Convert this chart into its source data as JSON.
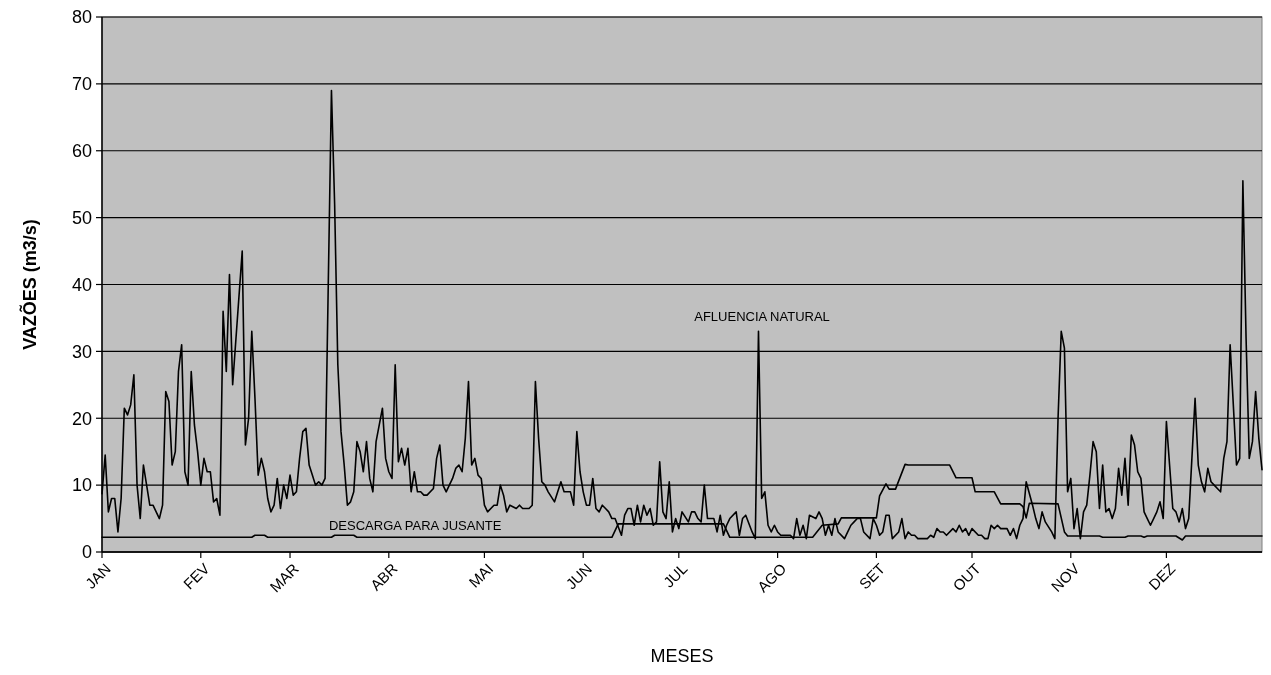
{
  "chart_data": {
    "type": "line",
    "xlabel": "MESES",
    "ylabel": "VAZÕES (m3/s)",
    "xlim": [
      "--01-01",
      "--12-31"
    ],
    "xticks": [
      {
        "value": "--01-01",
        "label": "JAN"
      },
      {
        "value": "--02-01",
        "label": "FEV"
      },
      {
        "value": "--03-01",
        "label": "MAR"
      },
      {
        "value": "--04-01",
        "label": "ABR"
      },
      {
        "value": "--05-01",
        "label": "MAI"
      },
      {
        "value": "--06-01",
        "label": "JUN"
      },
      {
        "value": "--07-01",
        "label": "JUL"
      },
      {
        "value": "--08-01",
        "label": "AGO"
      },
      {
        "value": "--09-01",
        "label": "SET"
      },
      {
        "value": "--10-01",
        "label": "OUT"
      },
      {
        "value": "--11-01",
        "label": "NOV"
      },
      {
        "value": "--12-01",
        "label": "DEZ"
      }
    ],
    "ylim": [
      0,
      80
    ],
    "yticks": [
      0,
      10,
      20,
      30,
      40,
      50,
      60,
      70,
      80
    ],
    "grid": "y",
    "line_style": "solid",
    "marker": "none",
    "series": [
      {
        "name": "AFLUENCIA NATURAL",
        "color": "#000000",
        "x": [
          "--01-01",
          "--01-02",
          "--01-03",
          "--01-04",
          "--01-05",
          "--01-06",
          "--01-07",
          "--01-08",
          "--01-09",
          "--01-10",
          "--01-11",
          "--01-12",
          "--01-13",
          "--01-14",
          "--01-15",
          "--01-16",
          "--01-17",
          "--01-18",
          "--01-19",
          "--01-20",
          "--01-21",
          "--01-22",
          "--01-23",
          "--01-24",
          "--01-25",
          "--01-26",
          "--01-27",
          "--01-28",
          "--01-29",
          "--01-30",
          "--01-31",
          "--02-01",
          "--02-02",
          "--02-03",
          "--02-04",
          "--02-05",
          "--02-06",
          "--02-07",
          "--02-08",
          "--02-09",
          "--02-10",
          "--02-11",
          "--02-14",
          "--02-15",
          "--02-16",
          "--02-17",
          "--02-18",
          "--02-19",
          "--02-20",
          "--02-21",
          "--02-22",
          "--02-23",
          "--02-24",
          "--02-25",
          "--02-26",
          "--02-27",
          "--02-28",
          "--03-01",
          "--03-02",
          "--03-03",
          "--03-04",
          "--03-05",
          "--03-06",
          "--03-07",
          "--03-08",
          "--03-09",
          "--03-10",
          "--03-11",
          "--03-12",
          "--03-13",
          "--03-14",
          "--03-15",
          "--03-16",
          "--03-17",
          "--03-18",
          "--03-19",
          "--03-20",
          "--03-21",
          "--03-22",
          "--03-23",
          "--03-24",
          "--03-25",
          "--03-26",
          "--03-27",
          "--03-28",
          "--03-29",
          "--03-30",
          "--03-31",
          "--04-01",
          "--04-02",
          "--04-03",
          "--04-04",
          "--04-05",
          "--04-06",
          "--04-07",
          "--04-08",
          "--04-09",
          "--04-10",
          "--04-11",
          "--04-12",
          "--04-13",
          "--04-15",
          "--04-16",
          "--04-17",
          "--04-18",
          "--04-19",
          "--04-21",
          "--04-22",
          "--04-23",
          "--04-24",
          "--04-25",
          "--04-26",
          "--04-27",
          "--04-28",
          "--04-29",
          "--04-30",
          "--05-01",
          "--05-02",
          "--05-04",
          "--05-05",
          "--05-06",
          "--05-07",
          "--05-08",
          "--05-09",
          "--05-11",
          "--05-12",
          "--05-13",
          "--05-15",
          "--05-16",
          "--05-17",
          "--05-18",
          "--05-19",
          "--05-20",
          "--05-21",
          "--05-23",
          "--05-24",
          "--05-25",
          "--05-26",
          "--05-28",
          "--05-29",
          "--05-30",
          "--05-31",
          "--06-01",
          "--06-02",
          "--06-03",
          "--06-04",
          "--06-05",
          "--06-06",
          "--06-07",
          "--06-08",
          "--06-09",
          "--06-10",
          "--06-11",
          "--06-13",
          "--06-14",
          "--06-15",
          "--06-16",
          "--06-17",
          "--06-18",
          "--06-19",
          "--06-20",
          "--06-21",
          "--06-22",
          "--06-23",
          "--06-24",
          "--06-25",
          "--06-26",
          "--06-27",
          "--06-28",
          "--06-29",
          "--06-30",
          "--07-01",
          "--07-02",
          "--07-04",
          "--07-05",
          "--07-06",
          "--07-07",
          "--07-08",
          "--07-09",
          "--07-10",
          "--07-12",
          "--07-13",
          "--07-14",
          "--07-15",
          "--07-16",
          "--07-17",
          "--07-19",
          "--07-20",
          "--07-21",
          "--07-22",
          "--07-24",
          "--07-25",
          "--07-26",
          "--07-27",
          "--07-28",
          "--07-29",
          "--07-30",
          "--07-31",
          "--08-01",
          "--08-02",
          "--08-04",
          "--08-05",
          "--08-06",
          "--08-07",
          "--08-08",
          "--08-09",
          "--08-10",
          "--08-11",
          "--08-13",
          "--08-14",
          "--08-15",
          "--08-16",
          "--08-17",
          "--08-18",
          "--08-19",
          "--08-20",
          "--08-22",
          "--08-23",
          "--08-24",
          "--08-25",
          "--08-26",
          "--08-27",
          "--08-28",
          "--08-30",
          "--08-31",
          "--09-01",
          "--09-02",
          "--09-03",
          "--09-04",
          "--09-05",
          "--09-06",
          "--09-08",
          "--09-09",
          "--09-10",
          "--09-11",
          "--09-12",
          "--09-13",
          "--09-14",
          "--09-16",
          "--09-17",
          "--09-18",
          "--09-19",
          "--09-20",
          "--09-21",
          "--09-22",
          "--09-23",
          "--09-25",
          "--09-26",
          "--09-27",
          "--09-28",
          "--09-29",
          "--09-30",
          "--10-01",
          "--10-03",
          "--10-04",
          "--10-05",
          "--10-06",
          "--10-07",
          "--10-08",
          "--10-09",
          "--10-10",
          "--10-12",
          "--10-13",
          "--10-14",
          "--10-15",
          "--10-16",
          "--10-17",
          "--10-18",
          "--10-20",
          "--10-21",
          "--10-22",
          "--10-23",
          "--10-24",
          "--10-26",
          "--10-27",
          "--10-28",
          "--10-29",
          "--10-30",
          "--10-31",
          "--11-01",
          "--11-02",
          "--11-03",
          "--11-04",
          "--11-05",
          "--11-06",
          "--11-07",
          "--11-08",
          "--11-09",
          "--11-10",
          "--11-11",
          "--11-12",
          "--11-13",
          "--11-14",
          "--11-15",
          "--11-16",
          "--11-17",
          "--11-18",
          "--11-19",
          "--11-20",
          "--11-21",
          "--11-22",
          "--11-23",
          "--11-24",
          "--11-25",
          "--11-26",
          "--11-27",
          "--11-28",
          "--11-29",
          "--11-30",
          "--12-01",
          "--12-02",
          "--12-03",
          "--12-04",
          "--12-05",
          "--12-06",
          "--12-07",
          "--12-08",
          "--12-09",
          "--12-10",
          "--12-11",
          "--12-12",
          "--12-13",
          "--12-14",
          "--12-15",
          "--12-16",
          "--12-17",
          "--12-18",
          "--12-19",
          "--12-20",
          "--12-21",
          "--12-22",
          "--12-23",
          "--12-24",
          "--12-25",
          "--12-26",
          "--12-27",
          "--12-28",
          "--12-29",
          "--12-30",
          "--12-31"
        ],
        "values": [
          8.7,
          14.5,
          6,
          8,
          8,
          3,
          8,
          21.5,
          20.5,
          22,
          26.5,
          10,
          5,
          13,
          10,
          7,
          7,
          6,
          5,
          7,
          24,
          22.5,
          13,
          15,
          27,
          31,
          12,
          10,
          27,
          19,
          15,
          10,
          14,
          12,
          12,
          7.5,
          8,
          5.5,
          36,
          27,
          41.5,
          25,
          45,
          16,
          20,
          33,
          23,
          11.5,
          14,
          12,
          8,
          6,
          7,
          11,
          6.5,
          10,
          8,
          11.5,
          8.5,
          9,
          14,
          18,
          18.5,
          13,
          11.5,
          10,
          10.5,
          10,
          11,
          40,
          69,
          52,
          28,
          18,
          13,
          7,
          7.5,
          9,
          16.5,
          15,
          12,
          16.5,
          11,
          9,
          16.5,
          19,
          21.5,
          14,
          12,
          11,
          28,
          13.5,
          15.5,
          13,
          15.5,
          9,
          12,
          9,
          9,
          8.5,
          8.5,
          9.5,
          14,
          16,
          10,
          9,
          11,
          12.5,
          13,
          12,
          17,
          25.5,
          13,
          14,
          11.5,
          11,
          7,
          6,
          7,
          7,
          10,
          8.5,
          6,
          7,
          6.5,
          7,
          6.5,
          6.5,
          7,
          25.5,
          17,
          10.5,
          10,
          9,
          7.5,
          9,
          10.5,
          9,
          9,
          7,
          18,
          12,
          9,
          7,
          7,
          11,
          6.5,
          6,
          7,
          6.5,
          6,
          5,
          5,
          2.5,
          5.5,
          6.5,
          6.5,
          4,
          7,
          4.5,
          7,
          5.5,
          6.5,
          4,
          4.5,
          13.5,
          6,
          5,
          10.5,
          3,
          5,
          3.5,
          6,
          4.5,
          6,
          6,
          5,
          4.5,
          10,
          5,
          5,
          3,
          5.5,
          2.5,
          4,
          5,
          6,
          2.5,
          5,
          5.5,
          3,
          2,
          33,
          8,
          9,
          4,
          3,
          4,
          3,
          2.5,
          2.5,
          2.5,
          2,
          5,
          2.5,
          4,
          2,
          5.5,
          5,
          6,
          5,
          2.5,
          4,
          2.5,
          5,
          3,
          2,
          3,
          4,
          4.5,
          5,
          5,
          3,
          2,
          5,
          4,
          2.5,
          3,
          5.5,
          5.5,
          2,
          3,
          5,
          2,
          3,
          2.5,
          2.5,
          2,
          2,
          2,
          2.5,
          2.2,
          3.5,
          3,
          3,
          2.5,
          3.5,
          3,
          4,
          3,
          3.5,
          2.5,
          3.5,
          2.5,
          2.5,
          2,
          2,
          4,
          3.5,
          4,
          3.5,
          3.5,
          2.5,
          3.5,
          2,
          4,
          5,
          10.5,
          7,
          5,
          3.5,
          6,
          4.5,
          3,
          2,
          20,
          33,
          30.5,
          9,
          11,
          3.5,
          6.5,
          2,
          6,
          7,
          11.5,
          16.5,
          15,
          6.5,
          13,
          6,
          6.5,
          5,
          6.5,
          12.5,
          8.5,
          14,
          7,
          17.5,
          16,
          12,
          11,
          6,
          5,
          4,
          5,
          6,
          7.5,
          5,
          19.5,
          13,
          6.5,
          6,
          4.5,
          6.5,
          3.5,
          5,
          14,
          23,
          13,
          10.5,
          9,
          12.5,
          10.5,
          10,
          9.5,
          9,
          14,
          16.5,
          31,
          22,
          13,
          14,
          55.5,
          32,
          14,
          16.5,
          24,
          17,
          12.3
        ]
      },
      {
        "name": "DESCARGA PARA JUSANTE",
        "color": "#000000",
        "x": [
          "--01-01",
          "--02-17",
          "--02-18",
          "--02-21",
          "--02-22",
          "--03-14",
          "--03-15",
          "--03-21",
          "--03-22",
          "--06-10",
          "--06-12",
          "--07-15",
          "--07-17",
          "--08-12",
          "--08-15",
          "--08-20",
          "--08-21",
          "--09-01",
          "--09-02",
          "--09-04",
          "--09-05",
          "--09-07",
          "--09-10",
          "--09-11",
          "--09-24",
          "--09-26",
          "--10-01",
          "--10-02",
          "--10-08",
          "--10-10",
          "--10-16",
          "--10-17",
          "--10-18",
          "--10-19",
          "--10-28",
          "--10-30",
          "--10-31",
          "--11-10",
          "--11-11",
          "--11-18",
          "--11-19",
          "--11-23",
          "--11-24",
          "--11-25",
          "--12-04",
          "--12-06",
          "--12-07",
          "--12-08",
          "--12-31"
        ],
        "values": [
          2.2,
          2.2,
          2.5,
          2.5,
          2.2,
          2.2,
          2.5,
          2.5,
          2.2,
          2.2,
          4.2,
          4.2,
          2.2,
          2.2,
          4,
          4.2,
          5.1,
          5.1,
          8.4,
          10.2,
          9.4,
          9.4,
          13.1,
          13.0,
          13.0,
          11.1,
          11.1,
          9.0,
          9.0,
          7.2,
          7.2,
          6.8,
          5.1,
          7.3,
          7.2,
          3,
          2.4,
          2.4,
          2.2,
          2.2,
          2.4,
          2.4,
          2.2,
          2.4,
          2.4,
          1.8,
          2.4,
          2.4,
          2.4
        ]
      }
    ]
  }
}
